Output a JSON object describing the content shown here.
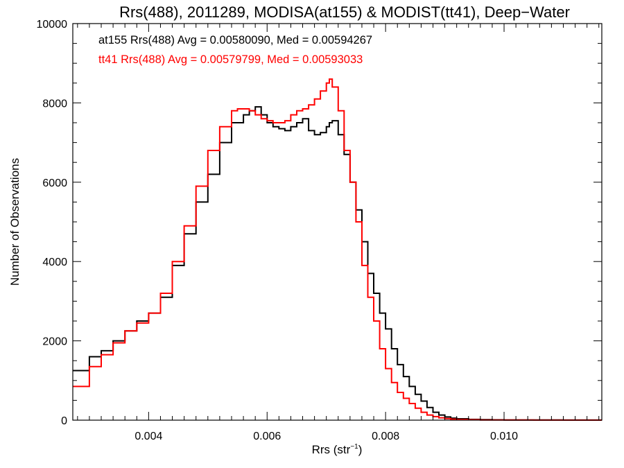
{
  "chart_data": {
    "type": "line",
    "step": true,
    "title": "Rrs(488), 2011289, MODISA(at155) & MODIST(tt41), Deep−Water",
    "xlabel": "Rrs (str",
    "xlabel_sup": "−1",
    "xlabel_suffix": ")",
    "ylabel": "Number of Observations",
    "xlim": [
      0.00272,
      0.01165
    ],
    "ylim": [
      0,
      10000
    ],
    "x_ticks": [
      {
        "value": 0.004,
        "label": "0.004"
      },
      {
        "value": 0.006,
        "label": "0.006"
      },
      {
        "value": 0.008,
        "label": "0.008"
      },
      {
        "value": 0.01,
        "label": "0.010"
      }
    ],
    "y_ticks": [
      {
        "value": 0,
        "label": "0"
      },
      {
        "value": 2000,
        "label": "2000"
      },
      {
        "value": 4000,
        "label": "4000"
      },
      {
        "value": 6000,
        "label": "6000"
      },
      {
        "value": 8000,
        "label": "8000"
      },
      {
        "value": 10000,
        "label": "10000"
      }
    ],
    "annotations": [
      {
        "text": "at155 Rrs(488) Avg = 0.00580090, Med = 0.00594267",
        "color": "#000000"
      },
      {
        "text": "tt41 Rrs(488) Avg = 0.00579799, Med = 0.00593033",
        "color": "#ff0000"
      }
    ],
    "series": [
      {
        "name": "at155",
        "color": "#000000",
        "x": [
          0.00272,
          0.003,
          0.0032,
          0.0034,
          0.0036,
          0.0038,
          0.004,
          0.0042,
          0.0044,
          0.0046,
          0.0048,
          0.005,
          0.0052,
          0.0054,
          0.0056,
          0.0057,
          0.0058,
          0.0059,
          0.006,
          0.0061,
          0.0062,
          0.0063,
          0.0064,
          0.0065,
          0.0066,
          0.0067,
          0.0068,
          0.0069,
          0.007,
          0.00705,
          0.0071,
          0.0072,
          0.0073,
          0.0074,
          0.0075,
          0.0076,
          0.0077,
          0.0078,
          0.0079,
          0.008,
          0.0081,
          0.0082,
          0.0083,
          0.0084,
          0.0085,
          0.0086,
          0.0087,
          0.0088,
          0.0089,
          0.009,
          0.0091,
          0.0092,
          0.0094,
          0.0096,
          0.0098,
          0.01,
          0.0105,
          0.011,
          0.01165
        ],
        "y": [
          1250,
          1600,
          1750,
          2000,
          2250,
          2500,
          2700,
          3100,
          3900,
          4700,
          5500,
          6200,
          7000,
          7500,
          7700,
          7800,
          7900,
          7700,
          7500,
          7400,
          7350,
          7300,
          7400,
          7500,
          7600,
          7300,
          7200,
          7250,
          7400,
          7500,
          7550,
          7200,
          6700,
          6000,
          5300,
          4500,
          3700,
          3200,
          2700,
          2300,
          1800,
          1400,
          1100,
          850,
          650,
          480,
          320,
          200,
          130,
          80,
          50,
          35,
          20,
          12,
          8,
          5,
          3,
          2,
          2
        ]
      },
      {
        "name": "tt41",
        "color": "#ff0000",
        "x": [
          0.00272,
          0.003,
          0.0032,
          0.0034,
          0.0036,
          0.0038,
          0.004,
          0.0042,
          0.0044,
          0.0046,
          0.0048,
          0.005,
          0.0052,
          0.0054,
          0.0055,
          0.0056,
          0.0057,
          0.0058,
          0.0059,
          0.006,
          0.0061,
          0.0062,
          0.0063,
          0.0064,
          0.0065,
          0.0066,
          0.0067,
          0.0068,
          0.0069,
          0.007,
          0.00705,
          0.0071,
          0.0072,
          0.0073,
          0.0074,
          0.0075,
          0.0076,
          0.0077,
          0.0078,
          0.0079,
          0.008,
          0.0081,
          0.0082,
          0.0083,
          0.0084,
          0.0085,
          0.0086,
          0.0087,
          0.0088,
          0.0089,
          0.009,
          0.0091,
          0.0092,
          0.0094,
          0.0096,
          0.0098,
          0.01,
          0.0105,
          0.011,
          0.01165
        ],
        "y": [
          850,
          1350,
          1650,
          1950,
          2250,
          2450,
          2700,
          3200,
          4000,
          4900,
          5900,
          6800,
          7400,
          7800,
          7850,
          7850,
          7800,
          7700,
          7600,
          7550,
          7500,
          7500,
          7550,
          7700,
          7800,
          7850,
          7950,
          8100,
          8300,
          8500,
          8600,
          8400,
          7800,
          6800,
          6000,
          5000,
          3900,
          3100,
          2500,
          1800,
          1300,
          950,
          700,
          550,
          420,
          300,
          200,
          130,
          90,
          60,
          40,
          25,
          15,
          10,
          6,
          4,
          3,
          2,
          2,
          2
        ]
      }
    ]
  }
}
